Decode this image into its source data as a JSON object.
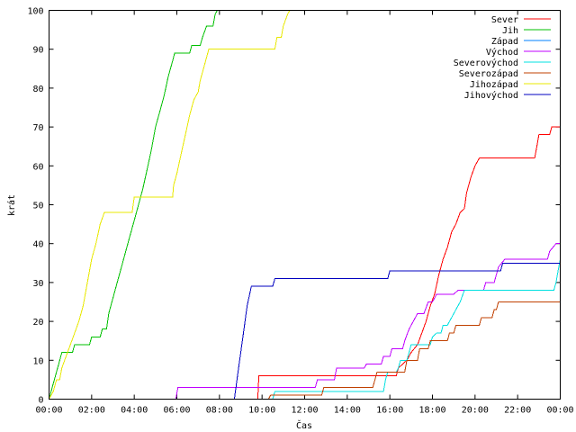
{
  "chart_data": {
    "type": "line",
    "xlabel": "Čas",
    "ylabel": "krát",
    "xlim": [
      0,
      24
    ],
    "ylim": [
      0,
      100
    ],
    "x_ticks": [
      {
        "value": 0,
        "label": "00:00"
      },
      {
        "value": 2,
        "label": "02:00"
      },
      {
        "value": 4,
        "label": "04:00"
      },
      {
        "value": 6,
        "label": "06:00"
      },
      {
        "value": 8,
        "label": "08:00"
      },
      {
        "value": 10,
        "label": "10:00"
      },
      {
        "value": 12,
        "label": "12:00"
      },
      {
        "value": 14,
        "label": "14:00"
      },
      {
        "value": 16,
        "label": "16:00"
      },
      {
        "value": 18,
        "label": "18:00"
      },
      {
        "value": 20,
        "label": "20:00"
      },
      {
        "value": 22,
        "label": "22:00"
      },
      {
        "value": 24,
        "label": "00:00"
      }
    ],
    "y_ticks": [
      0,
      10,
      20,
      30,
      40,
      50,
      60,
      70,
      80,
      90,
      100
    ],
    "grid": false,
    "legend_position": "top-right",
    "series": [
      {
        "name": "Sever",
        "color": "#ff0000",
        "points": [
          [
            9.8,
            0
          ],
          [
            9.85,
            6
          ],
          [
            16.3,
            6
          ],
          [
            16.4,
            8
          ],
          [
            16.8,
            10
          ],
          [
            17.0,
            12
          ],
          [
            17.3,
            14
          ],
          [
            17.5,
            17
          ],
          [
            17.7,
            20
          ],
          [
            17.9,
            24
          ],
          [
            18.1,
            27
          ],
          [
            18.3,
            32
          ],
          [
            18.5,
            36
          ],
          [
            18.7,
            39
          ],
          [
            18.9,
            43
          ],
          [
            19.1,
            45
          ],
          [
            19.3,
            48
          ],
          [
            19.5,
            49
          ],
          [
            19.6,
            53
          ],
          [
            19.8,
            57
          ],
          [
            20.0,
            60
          ],
          [
            20.2,
            62
          ],
          [
            22.8,
            62
          ],
          [
            22.9,
            65
          ],
          [
            23.0,
            68
          ],
          [
            23.5,
            68
          ],
          [
            23.6,
            70
          ],
          [
            24,
            70
          ]
        ]
      },
      {
        "name": "Jih",
        "color": "#00c000",
        "points": [
          [
            0,
            0
          ],
          [
            0.15,
            3
          ],
          [
            0.3,
            6
          ],
          [
            0.45,
            9
          ],
          [
            0.6,
            12
          ],
          [
            1.1,
            12
          ],
          [
            1.2,
            14
          ],
          [
            1.9,
            14
          ],
          [
            2.0,
            16
          ],
          [
            2.4,
            16
          ],
          [
            2.5,
            18
          ],
          [
            2.7,
            18
          ],
          [
            2.8,
            22
          ],
          [
            3.0,
            26
          ],
          [
            3.2,
            30
          ],
          [
            3.4,
            34
          ],
          [
            3.6,
            38
          ],
          [
            3.8,
            42
          ],
          [
            4.0,
            46
          ],
          [
            4.2,
            50
          ],
          [
            4.4,
            54
          ],
          [
            4.6,
            59
          ],
          [
            4.8,
            64
          ],
          [
            5.0,
            70
          ],
          [
            5.2,
            74
          ],
          [
            5.4,
            78
          ],
          [
            5.6,
            83
          ],
          [
            5.8,
            87
          ],
          [
            5.9,
            89
          ],
          [
            6.6,
            89
          ],
          [
            6.7,
            91
          ],
          [
            7.1,
            91
          ],
          [
            7.2,
            93
          ],
          [
            7.4,
            96
          ],
          [
            7.7,
            96
          ],
          [
            7.8,
            99
          ],
          [
            7.9,
            100
          ]
        ]
      },
      {
        "name": "Západ",
        "color": "#0080ff",
        "points": []
      },
      {
        "name": "Východ",
        "color": "#c000ff",
        "points": [
          [
            5.95,
            0
          ],
          [
            6.05,
            3
          ],
          [
            12.5,
            3
          ],
          [
            12.6,
            5
          ],
          [
            13.4,
            5
          ],
          [
            13.5,
            8
          ],
          [
            14.8,
            8
          ],
          [
            14.9,
            9
          ],
          [
            15.6,
            9
          ],
          [
            15.7,
            11
          ],
          [
            16.0,
            11
          ],
          [
            16.1,
            13
          ],
          [
            16.6,
            13
          ],
          [
            16.7,
            15
          ],
          [
            16.9,
            18
          ],
          [
            17.1,
            20
          ],
          [
            17.3,
            22
          ],
          [
            17.6,
            22
          ],
          [
            17.8,
            25
          ],
          [
            18.0,
            25
          ],
          [
            18.2,
            27
          ],
          [
            19.0,
            27
          ],
          [
            19.2,
            28
          ],
          [
            20.4,
            28
          ],
          [
            20.5,
            30
          ],
          [
            20.9,
            30
          ],
          [
            21.0,
            32
          ],
          [
            21.1,
            34
          ],
          [
            21.4,
            36
          ],
          [
            23.4,
            36
          ],
          [
            23.5,
            38
          ],
          [
            23.8,
            40
          ],
          [
            24,
            40
          ]
        ]
      },
      {
        "name": "Severovýchod",
        "color": "#00e0e0",
        "points": [
          [
            10.5,
            0
          ],
          [
            10.6,
            2
          ],
          [
            15.7,
            2
          ],
          [
            15.8,
            5
          ],
          [
            15.9,
            7
          ],
          [
            16.3,
            7
          ],
          [
            16.4,
            8
          ],
          [
            16.5,
            10
          ],
          [
            16.8,
            10
          ],
          [
            16.9,
            12
          ],
          [
            17.0,
            14
          ],
          [
            17.9,
            14
          ],
          [
            18.0,
            16
          ],
          [
            18.2,
            17
          ],
          [
            18.4,
            17
          ],
          [
            18.5,
            19
          ],
          [
            18.7,
            19
          ],
          [
            18.9,
            21
          ],
          [
            19.1,
            23
          ],
          [
            19.3,
            25
          ],
          [
            19.5,
            28
          ],
          [
            23.7,
            28
          ],
          [
            23.8,
            30
          ],
          [
            23.9,
            33
          ],
          [
            24,
            36
          ]
        ]
      },
      {
        "name": "Severozápad",
        "color": "#c04000",
        "points": [
          [
            10.3,
            0
          ],
          [
            10.4,
            1
          ],
          [
            12.8,
            1
          ],
          [
            12.9,
            3
          ],
          [
            15.2,
            3
          ],
          [
            15.3,
            5
          ],
          [
            15.4,
            7
          ],
          [
            16.7,
            7
          ],
          [
            16.8,
            10
          ],
          [
            17.3,
            10
          ],
          [
            17.4,
            13
          ],
          [
            17.8,
            13
          ],
          [
            17.9,
            15
          ],
          [
            18.7,
            15
          ],
          [
            18.8,
            17
          ],
          [
            19.0,
            17
          ],
          [
            19.1,
            19
          ],
          [
            20.2,
            19
          ],
          [
            20.3,
            21
          ],
          [
            20.8,
            21
          ],
          [
            20.9,
            23
          ],
          [
            21.0,
            23
          ],
          [
            21.1,
            25
          ],
          [
            24,
            25
          ]
        ]
      },
      {
        "name": "Jihozápad",
        "color": "#e8e800",
        "points": [
          [
            0,
            0
          ],
          [
            0.2,
            2
          ],
          [
            0.35,
            5
          ],
          [
            0.5,
            5
          ],
          [
            0.6,
            8
          ],
          [
            0.8,
            11
          ],
          [
            1.0,
            14
          ],
          [
            1.2,
            17
          ],
          [
            1.4,
            20
          ],
          [
            1.6,
            24
          ],
          [
            1.8,
            30
          ],
          [
            2.0,
            36
          ],
          [
            2.2,
            40
          ],
          [
            2.4,
            45
          ],
          [
            2.6,
            48
          ],
          [
            3.9,
            48
          ],
          [
            4.0,
            52
          ],
          [
            5.8,
            52
          ],
          [
            5.85,
            55
          ],
          [
            6.0,
            58
          ],
          [
            6.2,
            63
          ],
          [
            6.4,
            68
          ],
          [
            6.6,
            73
          ],
          [
            6.8,
            77
          ],
          [
            7.0,
            79
          ],
          [
            7.1,
            82
          ],
          [
            7.3,
            86
          ],
          [
            7.5,
            90
          ],
          [
            10.6,
            90
          ],
          [
            10.7,
            93
          ],
          [
            10.9,
            93
          ],
          [
            11.0,
            96
          ],
          [
            11.2,
            99
          ],
          [
            11.3,
            100
          ]
        ]
      },
      {
        "name": "Jihovýchod",
        "color": "#0000c0",
        "points": [
          [
            8.7,
            0
          ],
          [
            8.9,
            8
          ],
          [
            9.1,
            16
          ],
          [
            9.3,
            24
          ],
          [
            9.5,
            29
          ],
          [
            10.5,
            29
          ],
          [
            10.6,
            31
          ],
          [
            15.9,
            31
          ],
          [
            16.0,
            33
          ],
          [
            21.2,
            33
          ],
          [
            21.3,
            35
          ],
          [
            24,
            35
          ]
        ]
      }
    ]
  }
}
